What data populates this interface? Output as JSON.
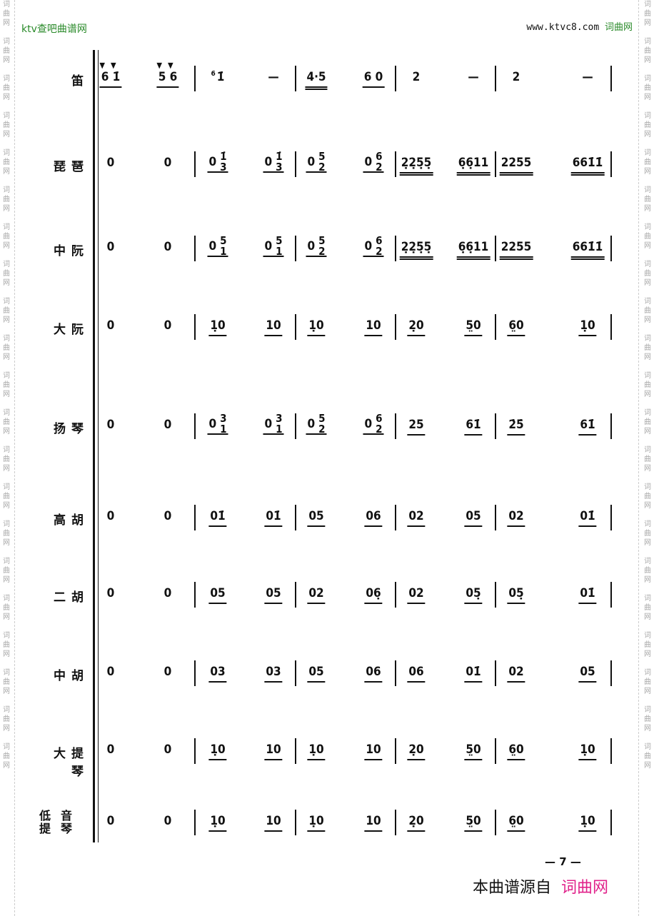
{
  "header": {
    "left": "ktv查吧曲谱网",
    "right_url": "www.ktvc8.com",
    "right_brand": "词曲网"
  },
  "watermark": "词曲网",
  "page_number": "— 7 —",
  "footer": {
    "prefix": "本曲谱源自",
    "brand": "词曲网",
    "brand_color": "#e0218a"
  },
  "rows": [
    {
      "name": "笛",
      "beats": [
        {
          "n": "6 1̇",
          "u": 1,
          "acc": "▼▼"
        },
        {
          "n": "5 6",
          "u": 1,
          "acc": "▼▼"
        },
        {
          "n": "1̇",
          "grace": "6"
        },
        {
          "n": "—"
        },
        {
          "n": "4·5",
          "u": 2
        },
        {
          "n": "6 0",
          "u": 1
        },
        {
          "n": "2"
        },
        {
          "n": "—"
        },
        {
          "n": "2"
        },
        {
          "n": "—"
        }
      ]
    },
    {
      "name": "琵琶",
      "beats": [
        {
          "n": "0"
        },
        {
          "n": "0"
        },
        {
          "n": "0",
          "hi": "1̇",
          "lo": "3",
          "u": 1
        },
        {
          "n": "0",
          "hi": "1̇",
          "lo": "3",
          "u": 1
        },
        {
          "n": "0",
          "hi": "5",
          "lo": "2",
          "u": 1
        },
        {
          "n": "0",
          "hi": "6",
          "lo": "2",
          "u": 1
        },
        {
          "n": "2̣2̣5̣5̣",
          "u": 2
        },
        {
          "n": "6̣6̣11",
          "u": 2
        },
        {
          "n": "2255",
          "u": 2
        },
        {
          "n": "661̇1̇",
          "u": 2
        }
      ]
    },
    {
      "name": "中阮",
      "beats": [
        {
          "n": "0"
        },
        {
          "n": "0"
        },
        {
          "n": "0",
          "hi": "5",
          "lo": "1",
          "u": 1
        },
        {
          "n": "0",
          "hi": "5",
          "lo": "1",
          "u": 1
        },
        {
          "n": "0",
          "hi": "5",
          "lo": "2",
          "u": 1
        },
        {
          "n": "0",
          "hi": "6",
          "lo": "2",
          "u": 1
        },
        {
          "n": "2̣2̣5̣5̣",
          "u": 2
        },
        {
          "n": "6̣6̣11",
          "u": 2
        },
        {
          "n": "2255",
          "u": 2
        },
        {
          "n": "661̇1̇",
          "u": 2
        }
      ]
    },
    {
      "name": "大阮",
      "beats": [
        {
          "n": "0"
        },
        {
          "n": "0"
        },
        {
          "n": "1̣0",
          "u": 1
        },
        {
          "n": "10",
          "u": 1
        },
        {
          "n": "1̣0",
          "u": 1
        },
        {
          "n": "10",
          "u": 1
        },
        {
          "n": "2̣0",
          "u": 1
        },
        {
          "n": "5̤0",
          "u": 1
        },
        {
          "n": "6̤0",
          "u": 1
        },
        {
          "n": "1̣0",
          "u": 1
        }
      ]
    },
    {
      "name": "扬琴",
      "beats": [
        {
          "n": "0"
        },
        {
          "n": "0"
        },
        {
          "n": "0",
          "hi": "3",
          "lo": "1",
          "u": 1
        },
        {
          "n": "0",
          "hi": "3",
          "lo": "1",
          "u": 1
        },
        {
          "n": "0",
          "hi": "5",
          "lo": "2",
          "u": 1
        },
        {
          "n": "0",
          "hi": "6",
          "lo": "2",
          "u": 1
        },
        {
          "n": "25",
          "u": 1
        },
        {
          "n": "61̇",
          "u": 1
        },
        {
          "n": "2̇5̇",
          "u": 1
        },
        {
          "n": "61̇",
          "u": 1
        }
      ]
    },
    {
      "name": "高胡",
      "beats": [
        {
          "n": "0"
        },
        {
          "n": "0"
        },
        {
          "n": "01̇",
          "u": 1
        },
        {
          "n": "01̇",
          "u": 1
        },
        {
          "n": "05",
          "u": 1
        },
        {
          "n": "06",
          "u": 1
        },
        {
          "n": "02",
          "u": 1
        },
        {
          "n": "05",
          "u": 1
        },
        {
          "n": "02",
          "u": 1
        },
        {
          "n": "01̇",
          "u": 1
        }
      ]
    },
    {
      "name": "二胡",
      "beats": [
        {
          "n": "0"
        },
        {
          "n": "0"
        },
        {
          "n": "05",
          "u": 1
        },
        {
          "n": "05",
          "u": 1
        },
        {
          "n": "02",
          "u": 1
        },
        {
          "n": "06̣",
          "u": 1
        },
        {
          "n": "02",
          "u": 1
        },
        {
          "n": "05̣",
          "u": 1
        },
        {
          "n": "05̣",
          "u": 1
        },
        {
          "n": "01̇",
          "u": 1
        }
      ]
    },
    {
      "name": "中胡",
      "beats": [
        {
          "n": "0"
        },
        {
          "n": "0"
        },
        {
          "n": "03",
          "u": 1
        },
        {
          "n": "03",
          "u": 1
        },
        {
          "n": "05",
          "u": 1
        },
        {
          "n": "06",
          "u": 1
        },
        {
          "n": "06",
          "u": 1
        },
        {
          "n": "01̇",
          "u": 1
        },
        {
          "n": "02",
          "u": 1
        },
        {
          "n": "05",
          "u": 1
        }
      ]
    },
    {
      "name": "大提琴",
      "beats": [
        {
          "n": "0"
        },
        {
          "n": "0"
        },
        {
          "n": "1̣0",
          "u": 1
        },
        {
          "n": "10",
          "u": 1
        },
        {
          "n": "1̣0",
          "u": 1
        },
        {
          "n": "10",
          "u": 1
        },
        {
          "n": "2̣0",
          "u": 1
        },
        {
          "n": "5̤0",
          "u": 1
        },
        {
          "n": "6̤0",
          "u": 1
        },
        {
          "n": "1̣0",
          "u": 1
        }
      ]
    },
    {
      "name": "低音提琴",
      "beats": [
        {
          "n": "0"
        },
        {
          "n": "0"
        },
        {
          "n": "1̣0",
          "u": 1
        },
        {
          "n": "10",
          "u": 1
        },
        {
          "n": "1̣0",
          "u": 1
        },
        {
          "n": "10",
          "u": 1
        },
        {
          "n": "2̣0",
          "u": 1
        },
        {
          "n": "5̤0",
          "u": 1
        },
        {
          "n": "6̤0",
          "u": 1
        },
        {
          "n": "1̣0",
          "u": 1
        }
      ]
    }
  ]
}
